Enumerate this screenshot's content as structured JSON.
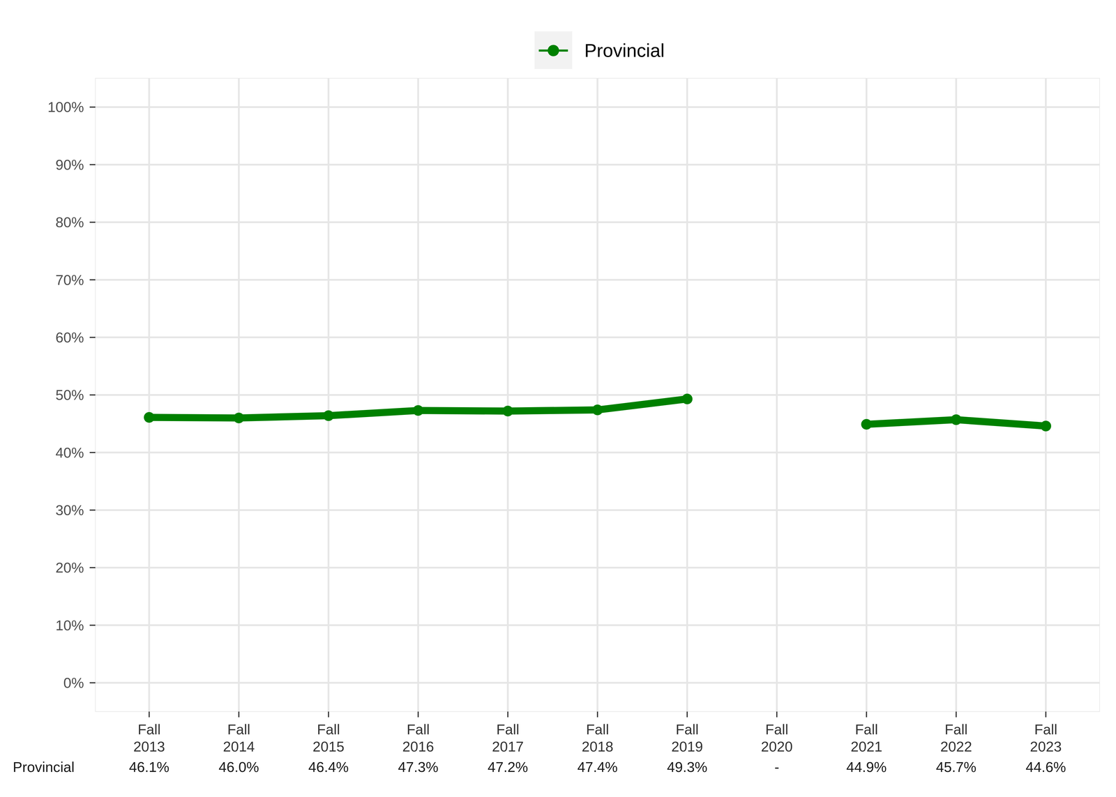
{
  "chart_data": {
    "type": "line",
    "categories": [
      "Fall 2013",
      "Fall 2014",
      "Fall 2015",
      "Fall 2016",
      "Fall 2017",
      "Fall 2018",
      "Fall 2019",
      "Fall 2020",
      "Fall 2021",
      "Fall 2022",
      "Fall 2023"
    ],
    "series": [
      {
        "name": "Provincial",
        "color": "#008000",
        "marker": "circle",
        "line_style": "solid",
        "values": [
          46.1,
          46.0,
          46.4,
          47.3,
          47.2,
          47.4,
          49.3,
          null,
          44.9,
          45.7,
          44.6
        ],
        "value_labels": [
          "46.1%",
          "46.0%",
          "46.4%",
          "47.3%",
          "47.2%",
          "47.4%",
          "49.3%",
          "-",
          "44.9%",
          "45.7%",
          "44.6%"
        ]
      }
    ],
    "ylim": [
      -5,
      105
    ],
    "yticks": [
      {
        "value": 0,
        "label": "0%"
      },
      {
        "value": 10,
        "label": "10%"
      },
      {
        "value": 20,
        "label": "20%"
      },
      {
        "value": 30,
        "label": "30%"
      },
      {
        "value": 40,
        "label": "40%"
      },
      {
        "value": 50,
        "label": "50%"
      },
      {
        "value": 60,
        "label": "60%"
      },
      {
        "value": 70,
        "label": "70%"
      },
      {
        "value": 80,
        "label": "80%"
      },
      {
        "value": 90,
        "label": "90%"
      },
      {
        "value": 100,
        "label": "100%"
      }
    ],
    "grid": true,
    "legend": "top"
  }
}
